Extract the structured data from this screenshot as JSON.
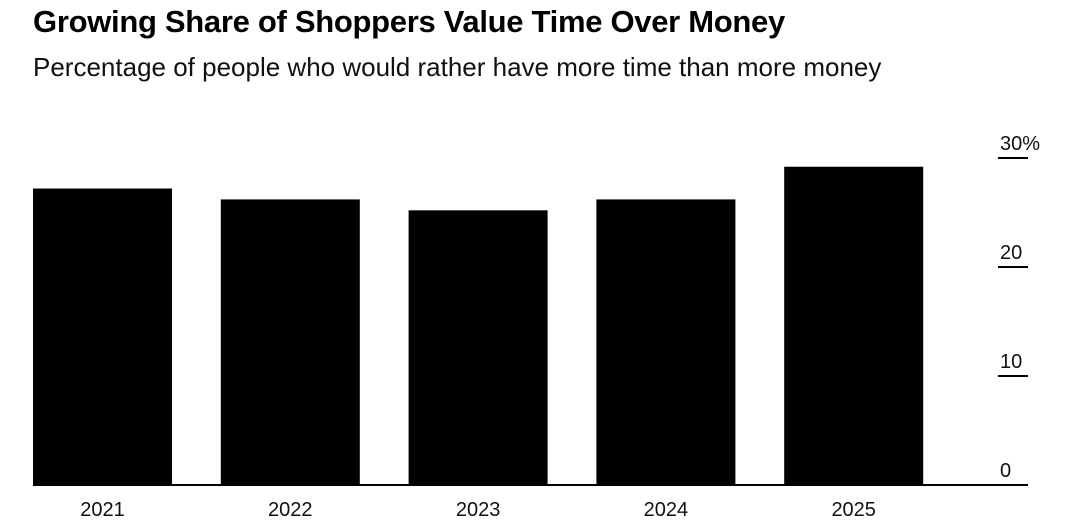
{
  "title": "Growing Share of Shoppers Value Time Over Money",
  "subtitle": "Percentage of people who would rather have more time than more money",
  "chart_data": {
    "type": "bar",
    "categories": [
      "2021",
      "2022",
      "2023",
      "2024",
      "2025"
    ],
    "values": [
      27.2,
      26.2,
      25.2,
      26.2,
      29.2
    ],
    "ylim": [
      0,
      30
    ],
    "yticks": [
      0,
      10,
      20,
      30
    ],
    "ytick_labels": [
      "0",
      "10",
      "20",
      "30%"
    ],
    "axis_position": "right",
    "bar_color": "#000000",
    "xlabel": "",
    "ylabel": ""
  }
}
